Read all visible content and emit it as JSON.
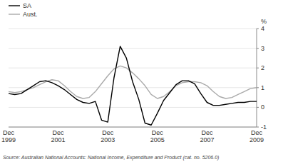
{
  "chart_data": {
    "type": "line",
    "ylabel": "%",
    "annotations": [
      "Source: Australian National Accounts: National Income, Expenditure and Product (cat. no. 5206.0)"
    ],
    "categories": [
      "Dec\n1999",
      null,
      null,
      null,
      null,
      null,
      null,
      null,
      "Dec\n2001",
      null,
      null,
      null,
      null,
      null,
      null,
      null,
      "Dec\n2003",
      null,
      null,
      null,
      null,
      null,
      null,
      null,
      "Dec\n2005",
      null,
      null,
      null,
      null,
      null,
      null,
      null,
      "Dec\n2007",
      null,
      null,
      null,
      null,
      null,
      null,
      null,
      "Dec\n2009"
    ],
    "series": [
      {
        "name": "SA",
        "color": "#000000",
        "values": [
          0.7,
          0.65,
          0.7,
          0.9,
          1.1,
          1.3,
          1.35,
          1.25,
          1.1,
          0.9,
          0.65,
          0.4,
          0.25,
          0.2,
          0.3,
          -0.65,
          -0.75,
          1.5,
          3.1,
          2.5,
          1.3,
          0.4,
          -0.8,
          -0.9,
          -0.3,
          0.35,
          0.75,
          1.15,
          1.35,
          1.35,
          1.2,
          0.7,
          0.25,
          0.1,
          0.1,
          0.15,
          0.2,
          0.25,
          0.25,
          0.3,
          0.3
        ]
      },
      {
        "name": "Aust.",
        "color": "#aaaaaa",
        "values": [
          0.8,
          0.75,
          0.8,
          0.9,
          1.0,
          1.15,
          1.3,
          1.4,
          1.35,
          1.1,
          0.8,
          0.55,
          0.45,
          0.5,
          0.8,
          1.2,
          1.6,
          1.95,
          2.1,
          2.0,
          1.75,
          1.45,
          1.1,
          0.65,
          0.45,
          0.55,
          0.8,
          1.1,
          1.25,
          1.3,
          1.3,
          1.25,
          1.1,
          0.8,
          0.55,
          0.45,
          0.5,
          0.65,
          0.8,
          0.95,
          1.0
        ]
      }
    ],
    "ylim": [
      -1,
      4
    ],
    "yticks": [
      -1,
      0,
      1,
      2,
      3,
      4
    ],
    "legend": "upper-left"
  }
}
